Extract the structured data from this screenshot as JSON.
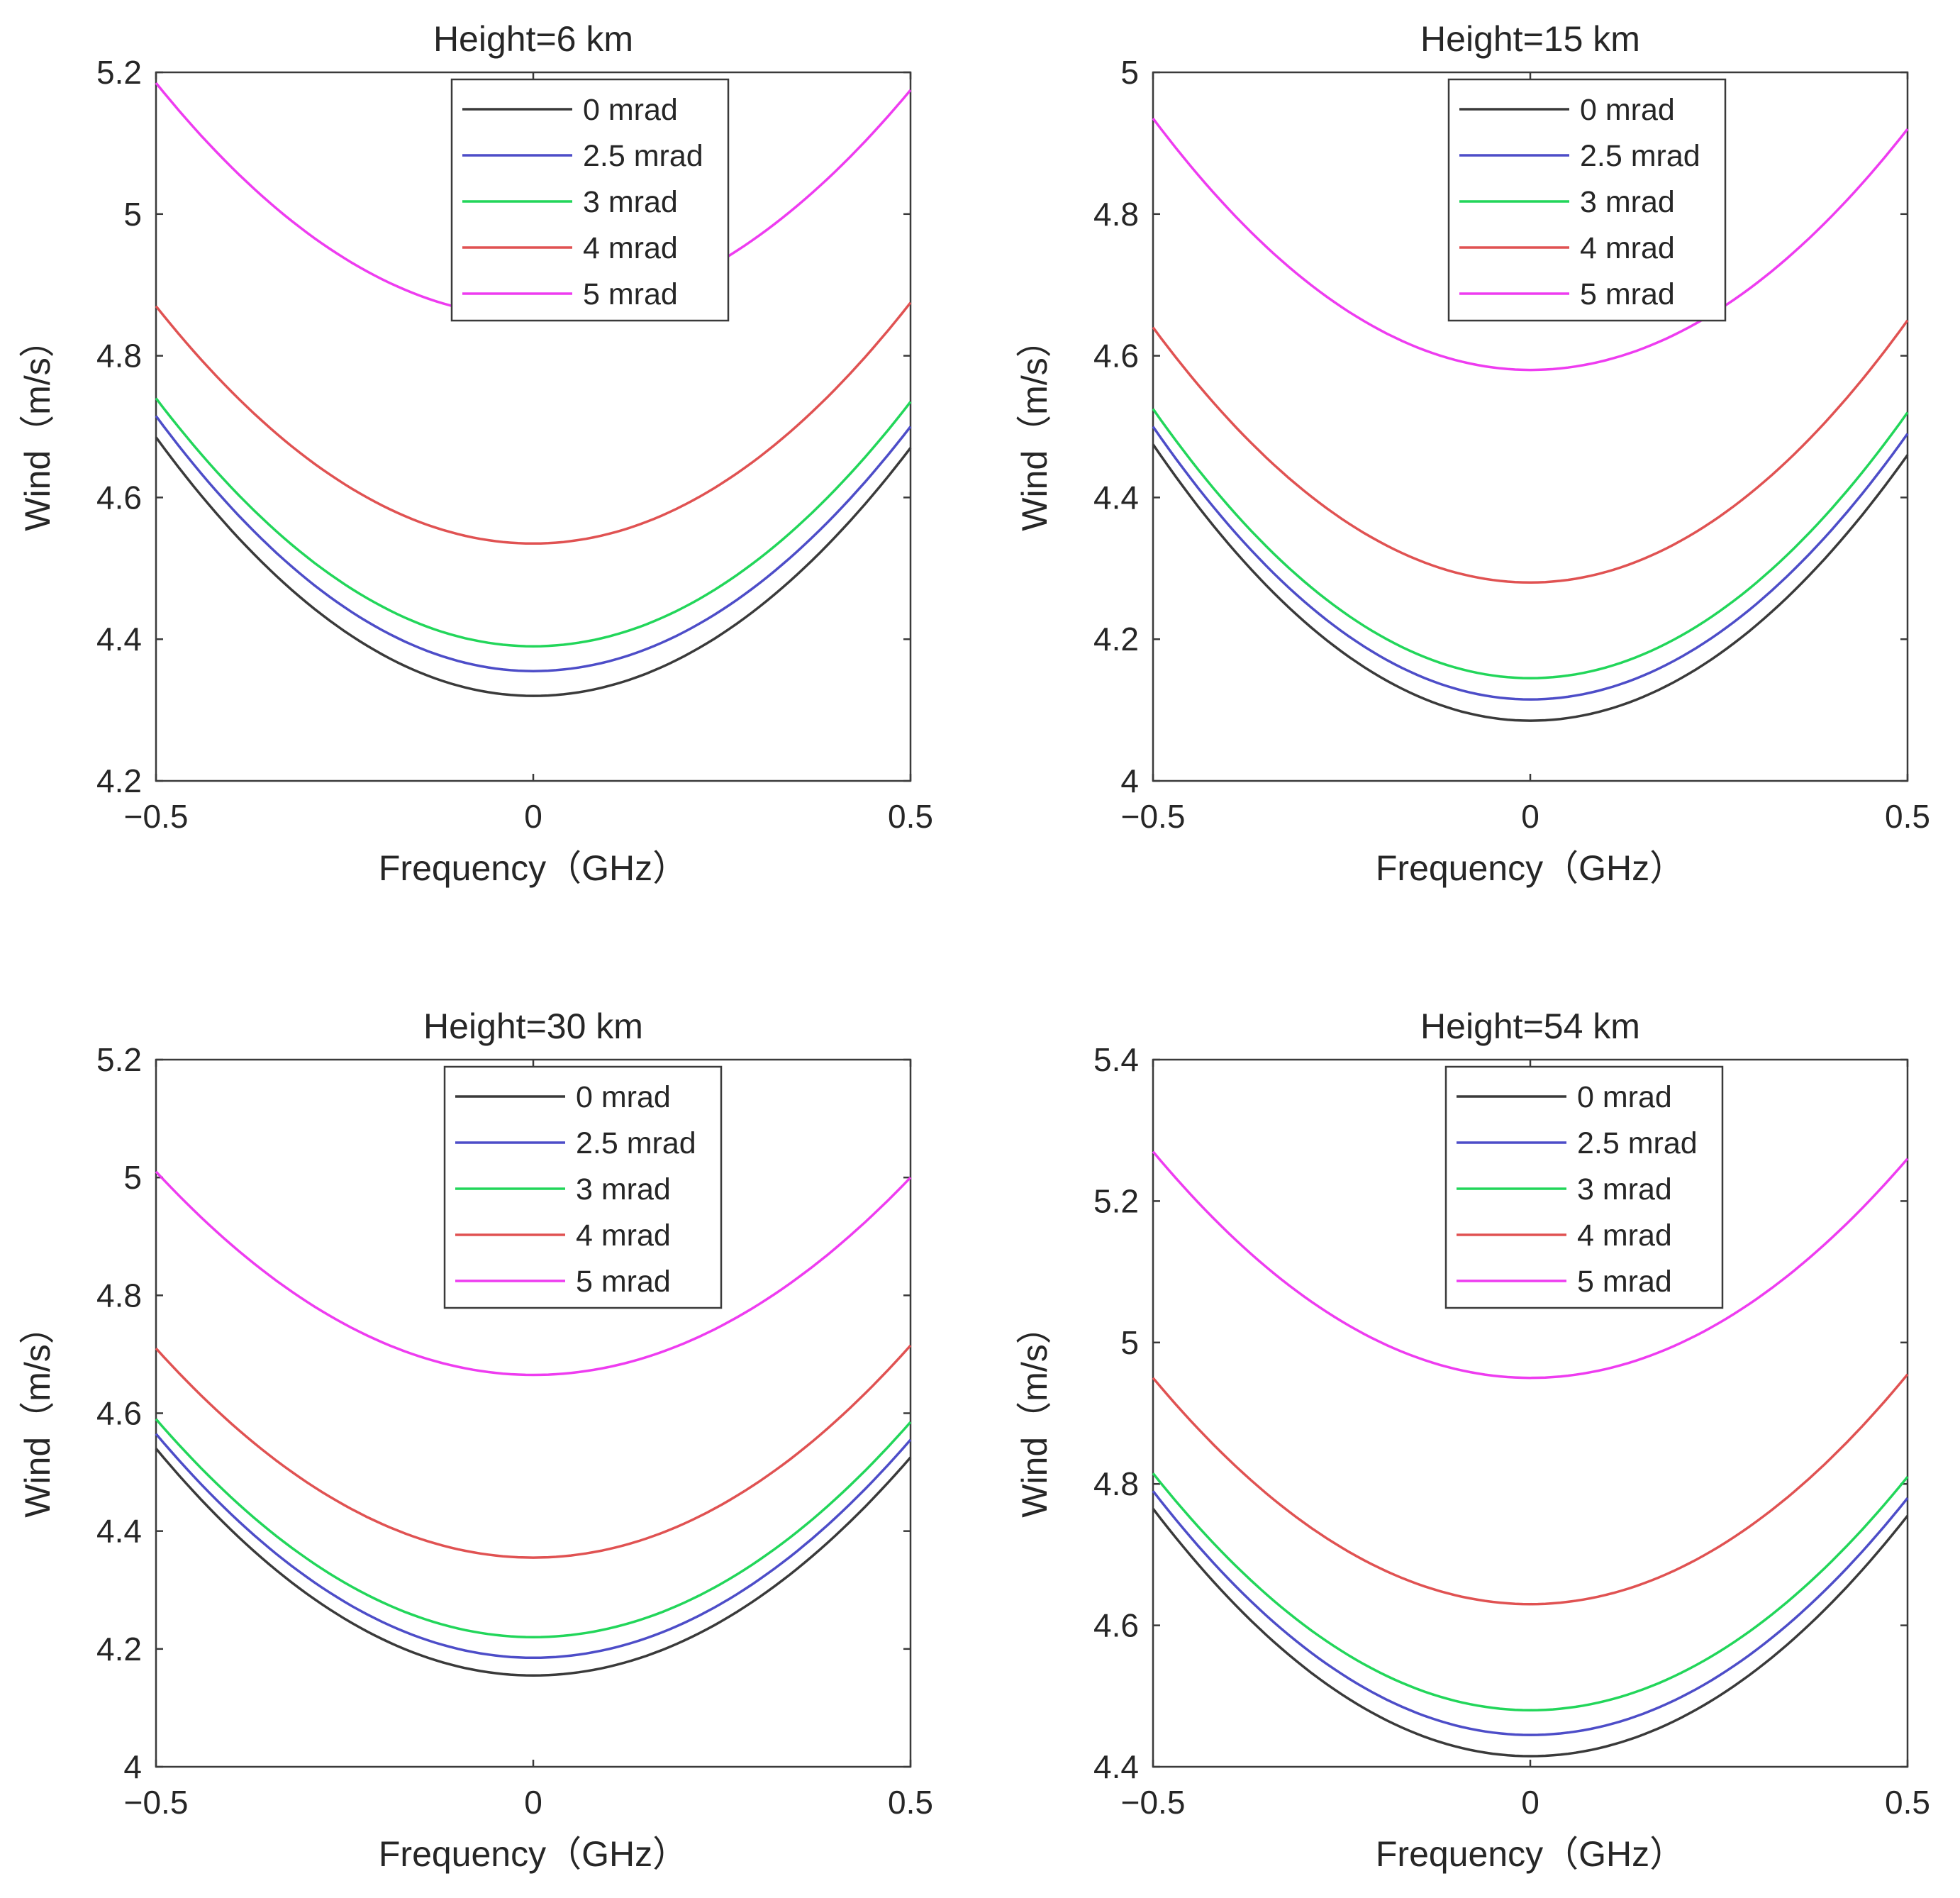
{
  "colors": {
    "0 mrad": "#3a3a3a",
    "2.5 mrad": "#4d4dc8",
    "3 mrad": "#22d65a",
    "4 mrad": "#e05252",
    "5 mrad": "#ee3cf0",
    "axis": "#3a3a3a"
  },
  "chart_data": [
    {
      "type": "line",
      "title": "Height=6 km",
      "xlabel": "Frequency（GHz）",
      "ylabel": "Wind（m/s）",
      "xlim": [
        -0.5,
        0.5
      ],
      "ylim": [
        4.2,
        5.2
      ],
      "xticks": [
        -0.5,
        0,
        0.5
      ],
      "xtick_labels": [
        "−0.5",
        "0",
        "0.5"
      ],
      "yticks": [
        4.2,
        4.4,
        4.6,
        4.8,
        5.0,
        5.2
      ],
      "ytick_labels": [
        "4.2",
        "4.4",
        "4.6",
        "4.8",
        "5",
        "5.2"
      ],
      "legend_position": "top-center",
      "series": [
        {
          "name": "0 mrad",
          "min": 4.32,
          "left": 4.685,
          "right": 4.67
        },
        {
          "name": "2.5 mrad",
          "min": 4.355,
          "left": 4.715,
          "right": 4.7
        },
        {
          "name": "3 mrad",
          "min": 4.39,
          "left": 4.74,
          "right": 4.735
        },
        {
          "name": "4 mrad",
          "min": 4.535,
          "left": 4.87,
          "right": 4.875
        },
        {
          "name": "5 mrad",
          "min": 4.855,
          "left": 5.185,
          "right": 5.175
        }
      ]
    },
    {
      "type": "line",
      "title": "Height=15 km",
      "xlabel": "Frequency（GHz）",
      "ylabel": "Wind（m/s）",
      "xlim": [
        -0.5,
        0.5
      ],
      "ylim": [
        4.0,
        5.0
      ],
      "xticks": [
        -0.5,
        0,
        0.5
      ],
      "xtick_labels": [
        "−0.5",
        "0",
        "0.5"
      ],
      "yticks": [
        4.0,
        4.2,
        4.4,
        4.6,
        4.8,
        5.0
      ],
      "ytick_labels": [
        "4",
        "4.2",
        "4.4",
        "4.6",
        "4.8",
        "5"
      ],
      "legend_position": "top-center",
      "series": [
        {
          "name": "0 mrad",
          "min": 4.085,
          "left": 4.475,
          "right": 4.46
        },
        {
          "name": "2.5 mrad",
          "min": 4.115,
          "left": 4.5,
          "right": 4.49
        },
        {
          "name": "3 mrad",
          "min": 4.145,
          "left": 4.525,
          "right": 4.52
        },
        {
          "name": "4 mrad",
          "min": 4.28,
          "left": 4.64,
          "right": 4.65
        },
        {
          "name": "5 mrad",
          "min": 4.58,
          "left": 4.935,
          "right": 4.92
        }
      ]
    },
    {
      "type": "line",
      "title": "Height=30 km",
      "xlabel": "Frequency（GHz）",
      "ylabel": "Wind（m/s）",
      "xlim": [
        -0.5,
        0.5
      ],
      "ylim": [
        4.0,
        5.2
      ],
      "xticks": [
        -0.5,
        0,
        0.5
      ],
      "xtick_labels": [
        "−0.5",
        "0",
        "0.5"
      ],
      "yticks": [
        4.0,
        4.2,
        4.4,
        4.6,
        4.8,
        5.0,
        5.2
      ],
      "ytick_labels": [
        "4",
        "4.2",
        "4.4",
        "4.6",
        "4.8",
        "5",
        "5.2"
      ],
      "legend_position": "top-center",
      "series": [
        {
          "name": "0 mrad",
          "min": 4.155,
          "left": 4.54,
          "right": 4.525
        },
        {
          "name": "2.5 mrad",
          "min": 4.185,
          "left": 4.565,
          "right": 4.555
        },
        {
          "name": "3 mrad",
          "min": 4.22,
          "left": 4.59,
          "right": 4.585
        },
        {
          "name": "4 mrad",
          "min": 4.355,
          "left": 4.71,
          "right": 4.715
        },
        {
          "name": "5 mrad",
          "min": 4.665,
          "left": 5.01,
          "right": 5.0
        }
      ]
    },
    {
      "type": "line",
      "title": "Height=54 km",
      "xlabel": "Frequency（GHz）",
      "ylabel": "Wind（m/s）",
      "xlim": [
        -0.5,
        0.5
      ],
      "ylim": [
        4.4,
        5.4
      ],
      "xticks": [
        -0.5,
        0,
        0.5
      ],
      "xtick_labels": [
        "−0.5",
        "0",
        "0.5"
      ],
      "yticks": [
        4.4,
        4.6,
        4.8,
        5.0,
        5.2,
        5.4
      ],
      "ytick_labels": [
        "4.4",
        "4.6",
        "4.8",
        "5",
        "5.2",
        "5.4"
      ],
      "legend_position": "top-center",
      "series": [
        {
          "name": "0 mrad",
          "min": 4.415,
          "left": 4.765,
          "right": 4.755
        },
        {
          "name": "2.5 mrad",
          "min": 4.445,
          "left": 4.79,
          "right": 4.78
        },
        {
          "name": "3 mrad",
          "min": 4.48,
          "left": 4.815,
          "right": 4.81
        },
        {
          "name": "4 mrad",
          "min": 4.63,
          "left": 4.95,
          "right": 4.955
        },
        {
          "name": "5 mrad",
          "min": 4.95,
          "left": 5.27,
          "right": 5.26
        }
      ]
    }
  ]
}
